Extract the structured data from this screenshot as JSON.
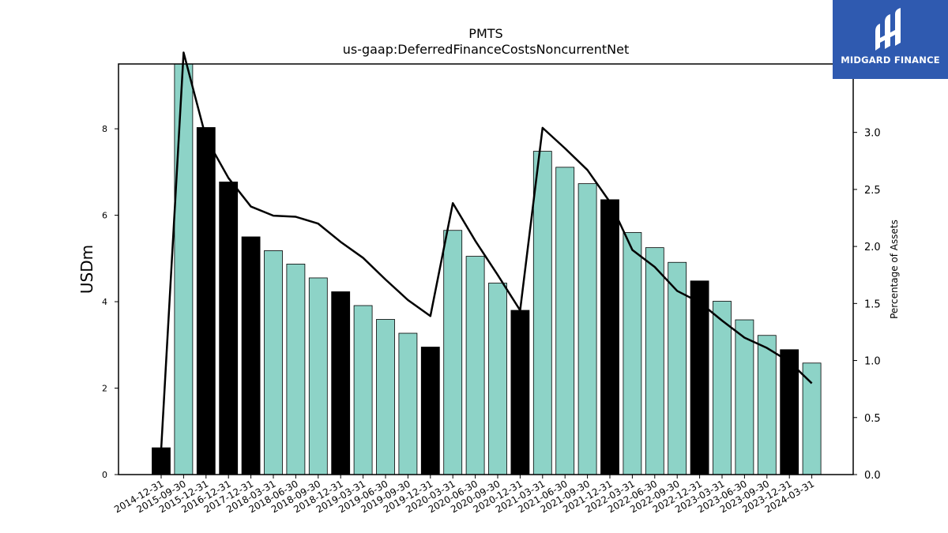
{
  "chart_data": {
    "type": "bar",
    "title": "PMTS",
    "subtitle": "us-gaap:DeferredFinanceCostsNoncurrentNet",
    "ylabel": "USDm",
    "y2label": "Percentage of Assets",
    "ylim": [
      0,
      9.5
    ],
    "y2lim": [
      0,
      3.6
    ],
    "yticks": [
      0,
      2,
      4,
      6,
      8
    ],
    "y2ticks": [
      "0.0",
      "0.5",
      "1.0",
      "1.5",
      "2.0",
      "2.5",
      "3.0"
    ],
    "categories": [
      "2014-12-31",
      "2015-09-30",
      "2015-12-31",
      "2016-12-31",
      "2017-12-31",
      "2018-03-31",
      "2018-06-30",
      "2018-09-30",
      "2018-12-31",
      "2019-03-31",
      "2019-06-30",
      "2019-09-30",
      "2019-12-31",
      "2020-03-31",
      "2020-06-30",
      "2020-09-30",
      "2020-12-31",
      "2021-03-31",
      "2021-06-30",
      "2021-09-30",
      "2021-12-31",
      "2022-03-31",
      "2022-06-30",
      "2022-09-30",
      "2022-12-31",
      "2023-03-31",
      "2023-06-30",
      "2023-09-30",
      "2023-12-31",
      "2024-03-31"
    ],
    "series": [
      {
        "kind": "bar",
        "values": [
          0.62,
          9.5,
          8.03,
          6.77,
          5.5,
          5.18,
          4.87,
          4.55,
          4.23,
          3.91,
          3.59,
          3.27,
          2.95,
          5.65,
          5.05,
          4.43,
          3.8,
          7.48,
          7.11,
          6.73,
          6.36,
          5.6,
          5.25,
          4.91,
          4.48,
          4.01,
          3.58,
          3.22,
          2.89,
          2.58
        ],
        "colors": [
          "#000000",
          "#8dd3c7",
          "#000000",
          "#000000",
          "#000000",
          "#8dd3c7",
          "#8dd3c7",
          "#8dd3c7",
          "#000000",
          "#8dd3c7",
          "#8dd3c7",
          "#8dd3c7",
          "#000000",
          "#8dd3c7",
          "#8dd3c7",
          "#8dd3c7",
          "#000000",
          "#8dd3c7",
          "#8dd3c7",
          "#8dd3c7",
          "#000000",
          "#8dd3c7",
          "#8dd3c7",
          "#8dd3c7",
          "#000000",
          "#8dd3c7",
          "#8dd3c7",
          "#8dd3c7",
          "#000000",
          "#8dd3c7"
        ]
      },
      {
        "kind": "line",
        "axis": "right",
        "color": "#000000",
        "values": [
          0.22,
          3.7,
          2.95,
          2.6,
          2.35,
          2.27,
          2.26,
          2.2,
          2.04,
          1.9,
          1.71,
          1.53,
          1.39,
          2.38,
          2.05,
          1.75,
          1.44,
          3.04,
          2.86,
          2.67,
          2.39,
          1.97,
          1.82,
          1.61,
          1.51,
          1.35,
          1.2,
          1.11,
          0.99,
          0.8
        ]
      }
    ]
  },
  "logo": {
    "text": "MIDGARD FINANCE",
    "mark": "midgard-logo-icon",
    "background": "#2f5ab0"
  }
}
